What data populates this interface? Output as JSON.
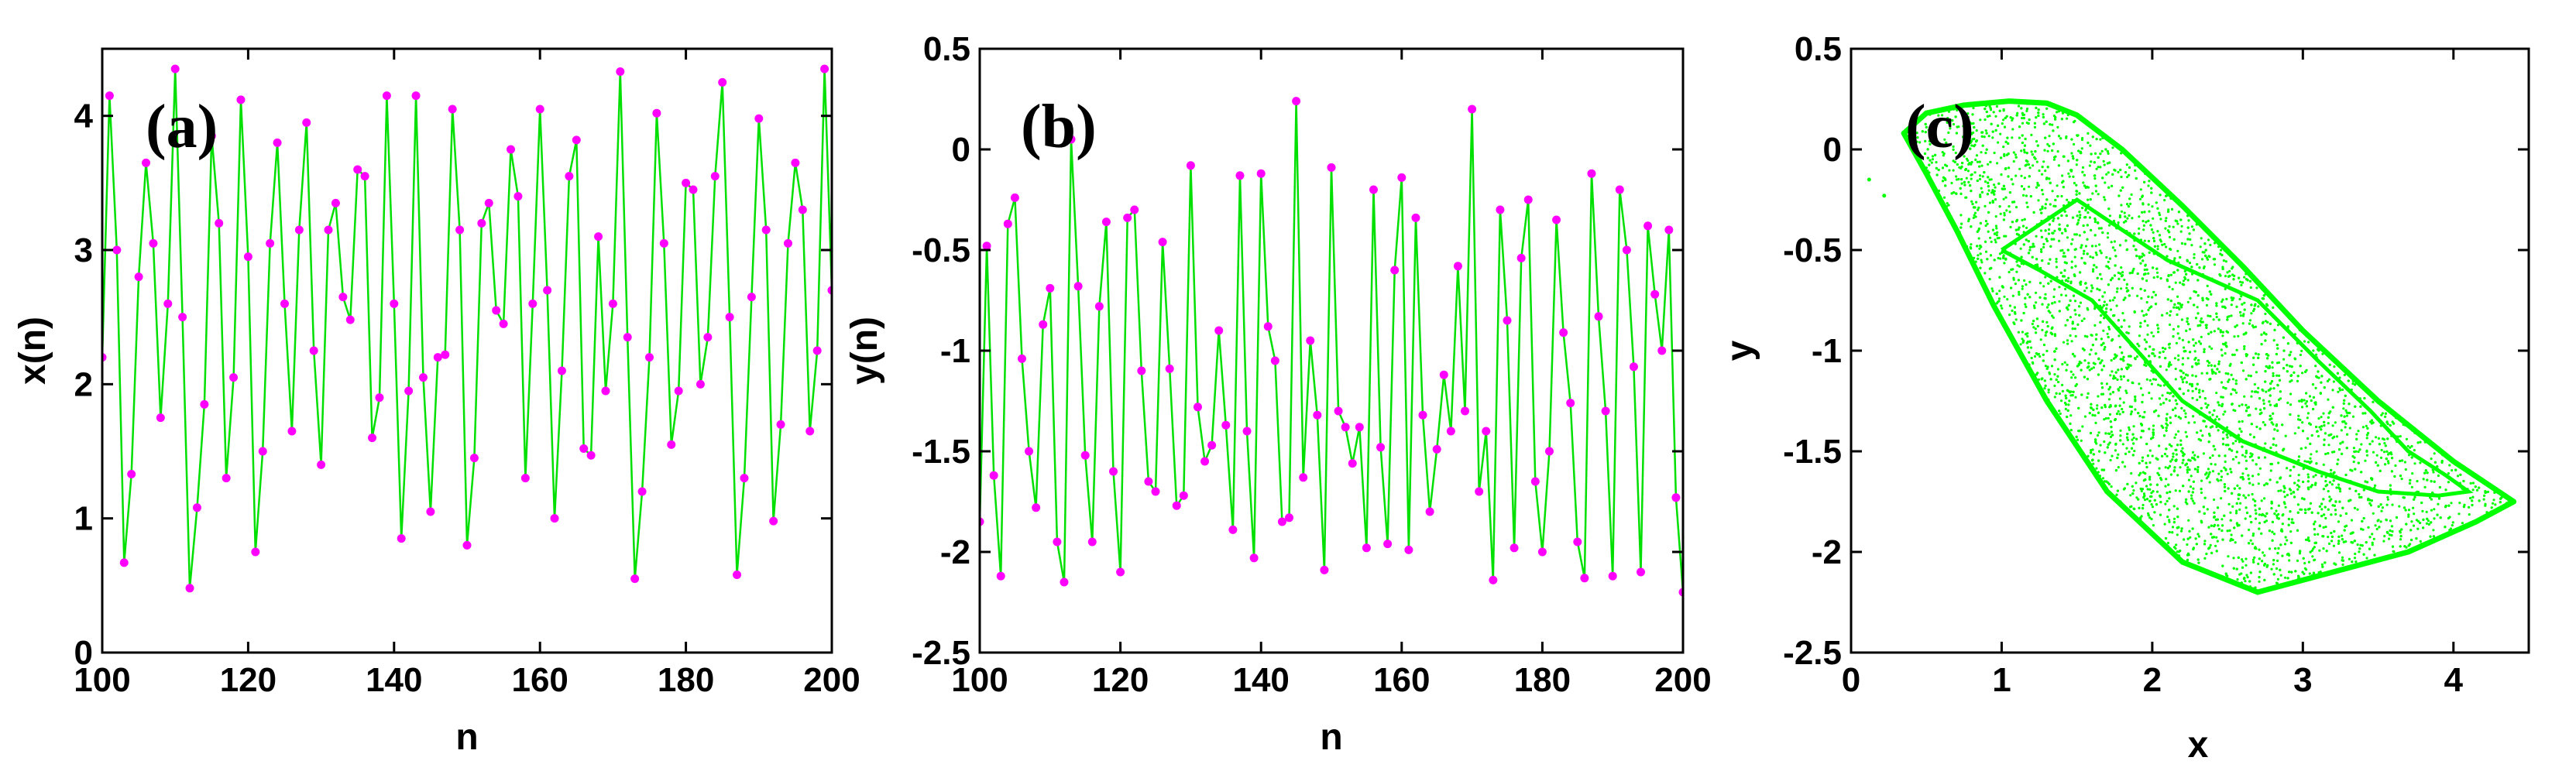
{
  "colors": {
    "series_line": "#00e000",
    "series_marker": "#ff00ff",
    "attractor": "#00ff00",
    "axes": "#000000",
    "background": "#ffffff"
  },
  "chart_data": [
    {
      "type": "line",
      "panel_label": "(a)",
      "xlabel": "n",
      "ylabel": "x(n)",
      "xlim": [
        100,
        200
      ],
      "ylim": [
        0,
        4.5
      ],
      "xticks": [
        "100",
        "120",
        "140",
        "160",
        "180",
        "200"
      ],
      "yticks": [
        "0",
        "1",
        "2",
        "3",
        "4"
      ],
      "grid": false,
      "markers": true,
      "series": [
        {
          "x": [
            100,
            101,
            102,
            103,
            104,
            105,
            106,
            107,
            108,
            109,
            110,
            111,
            112,
            113,
            114,
            115,
            116,
            117,
            118,
            119,
            120,
            121,
            122,
            123,
            124,
            125,
            126,
            127,
            128,
            129,
            130,
            131,
            132,
            133,
            134,
            135,
            136,
            137,
            138,
            139,
            140,
            141,
            142,
            143,
            144,
            145,
            146,
            147,
            148,
            149,
            150,
            151,
            152,
            153,
            154,
            155,
            156,
            157,
            158,
            159,
            160,
            161,
            162,
            163,
            164,
            165,
            166,
            167,
            168,
            169,
            170,
            171,
            172,
            173,
            174,
            175,
            176,
            177,
            178,
            179,
            180,
            181,
            182,
            183,
            184,
            185,
            186,
            187,
            188,
            189,
            190,
            191,
            192,
            193,
            194,
            195,
            196,
            197,
            198,
            199,
            200
          ],
          "y": [
            2.2,
            4.15,
            3.0,
            0.67,
            1.33,
            2.8,
            3.65,
            3.05,
            1.75,
            2.6,
            4.35,
            2.5,
            0.48,
            1.08,
            1.85,
            3.85,
            3.2,
            1.3,
            2.05,
            4.12,
            2.95,
            0.75,
            1.5,
            3.05,
            3.8,
            2.6,
            1.65,
            3.15,
            3.95,
            2.25,
            1.4,
            3.15,
            3.35,
            2.65,
            2.48,
            3.6,
            3.55,
            1.6,
            1.9,
            4.15,
            2.6,
            0.85,
            1.95,
            4.15,
            2.05,
            1.05,
            2.2,
            2.22,
            4.05,
            3.15,
            0.8,
            1.45,
            3.2,
            3.35,
            2.55,
            2.45,
            3.75,
            3.4,
            1.3,
            2.6,
            4.05,
            2.7,
            1.0,
            2.1,
            3.55,
            3.82,
            1.52,
            1.47,
            3.1,
            1.95,
            2.6,
            4.33,
            2.35,
            0.55,
            1.2,
            2.2,
            4.02,
            3.05,
            1.55,
            1.95,
            3.5,
            3.45,
            2.0,
            2.35,
            3.55,
            4.25,
            2.5,
            0.58,
            1.3,
            2.65,
            3.98,
            3.15,
            0.98,
            1.7,
            3.05,
            3.65,
            3.3,
            1.65,
            2.25,
            4.35,
            2.7
          ]
        }
      ]
    },
    {
      "type": "line",
      "panel_label": "(b)",
      "xlabel": "n",
      "ylabel": "y(n)",
      "xlim": [
        100,
        200
      ],
      "ylim": [
        -2.5,
        0.5
      ],
      "xticks": [
        "100",
        "120",
        "140",
        "160",
        "180",
        "200"
      ],
      "yticks": [
        "-2.5",
        "-2",
        "-1.5",
        "-1",
        "-0.5",
        "0",
        "0.5"
      ],
      "grid": false,
      "markers": true,
      "series": [
        {
          "x": [
            100,
            101,
            102,
            103,
            104,
            105,
            106,
            107,
            108,
            109,
            110,
            111,
            112,
            113,
            114,
            115,
            116,
            117,
            118,
            119,
            120,
            121,
            122,
            123,
            124,
            125,
            126,
            127,
            128,
            129,
            130,
            131,
            132,
            133,
            134,
            135,
            136,
            137,
            138,
            139,
            140,
            141,
            142,
            143,
            144,
            145,
            146,
            147,
            148,
            149,
            150,
            151,
            152,
            153,
            154,
            155,
            156,
            157,
            158,
            159,
            160,
            161,
            162,
            163,
            164,
            165,
            166,
            167,
            168,
            169,
            170,
            171,
            172,
            173,
            174,
            175,
            176,
            177,
            178,
            179,
            180,
            181,
            182,
            183,
            184,
            185,
            186,
            187,
            188,
            189,
            190,
            191,
            192,
            193,
            194,
            195,
            196,
            197,
            198,
            199,
            200
          ],
          "y": [
            -1.85,
            -0.48,
            -1.62,
            -2.12,
            -0.37,
            -0.24,
            -1.04,
            -1.5,
            -1.78,
            -0.87,
            -0.69,
            -1.95,
            -2.15,
            0.05,
            -0.68,
            -1.52,
            -1.95,
            -0.78,
            -0.36,
            -1.6,
            -2.1,
            -0.34,
            -0.3,
            -1.1,
            -1.65,
            -1.7,
            -0.46,
            -1.09,
            -1.77,
            -1.72,
            -0.08,
            -1.28,
            -1.55,
            -1.47,
            -0.9,
            -1.37,
            -1.89,
            -0.13,
            -1.4,
            -2.03,
            -0.12,
            -0.88,
            -1.05,
            -1.85,
            -1.83,
            0.24,
            -1.63,
            -0.95,
            -1.32,
            -2.09,
            -0.09,
            -1.3,
            -1.38,
            -1.56,
            -1.38,
            -1.98,
            -0.2,
            -1.48,
            -1.96,
            -0.6,
            -0.14,
            -1.99,
            -0.34,
            -1.32,
            -1.8,
            -1.49,
            -1.12,
            -1.4,
            -0.58,
            -1.3,
            0.2,
            -1.7,
            -1.4,
            -2.14,
            -0.3,
            -0.85,
            -1.98,
            -0.54,
            -0.25,
            -1.65,
            -2.0,
            -1.5,
            -0.35,
            -0.91,
            -1.26,
            -1.95,
            -2.13,
            -0.12,
            -0.83,
            -1.3,
            -2.12,
            -0.2,
            -0.5,
            -1.08,
            -2.1,
            -0.38,
            -0.72,
            -1.0,
            -0.4,
            -1.73,
            -2.2
          ]
        }
      ]
    },
    {
      "type": "scatter",
      "panel_label": "(c)",
      "xlabel": "x",
      "ylabel": "y",
      "xlim": [
        0,
        4.5
      ],
      "ylim": [
        -2.5,
        0.5
      ],
      "xticks": [
        "0",
        "1",
        "2",
        "3",
        "4"
      ],
      "yticks": [
        "-2.5",
        "-2",
        "-1.5",
        "-1",
        "-0.5",
        "0",
        "0.5"
      ],
      "grid": false,
      "markers": true,
      "attractor_outline": {
        "x": [
          0.35,
          0.5,
          0.75,
          1.05,
          1.3,
          1.5,
          1.8,
          2.2,
          2.6,
          3.0,
          3.5,
          4.0,
          4.4,
          4.15,
          3.7,
          3.2,
          2.7,
          2.2,
          1.7,
          1.3,
          0.95,
          0.7,
          0.5,
          0.35
        ],
        "y": [
          0.08,
          0.18,
          0.22,
          0.24,
          0.23,
          0.17,
          0.0,
          -0.28,
          -0.58,
          -0.9,
          -1.25,
          -1.55,
          -1.75,
          -1.85,
          -2.0,
          -2.1,
          -2.2,
          -2.05,
          -1.7,
          -1.25,
          -0.78,
          -0.4,
          -0.12,
          0.08
        ]
      },
      "inner_boundary": {
        "x": [
          1.0,
          1.5,
          2.1,
          2.7,
          3.1,
          3.45,
          3.7,
          3.95,
          4.1,
          3.9,
          3.5,
          3.1,
          2.6,
          2.2,
          1.9,
          1.6,
          1.25,
          1.0
        ],
        "y": [
          -0.5,
          -0.25,
          -0.55,
          -0.75,
          -1.05,
          -1.3,
          -1.5,
          -1.62,
          -1.7,
          -1.72,
          -1.7,
          -1.6,
          -1.45,
          -1.25,
          -1.0,
          -0.75,
          -0.6,
          -0.5
        ]
      },
      "stray_points": {
        "x": [
          0.12,
          0.22
        ],
        "y": [
          -0.15,
          -0.23
        ]
      }
    }
  ]
}
